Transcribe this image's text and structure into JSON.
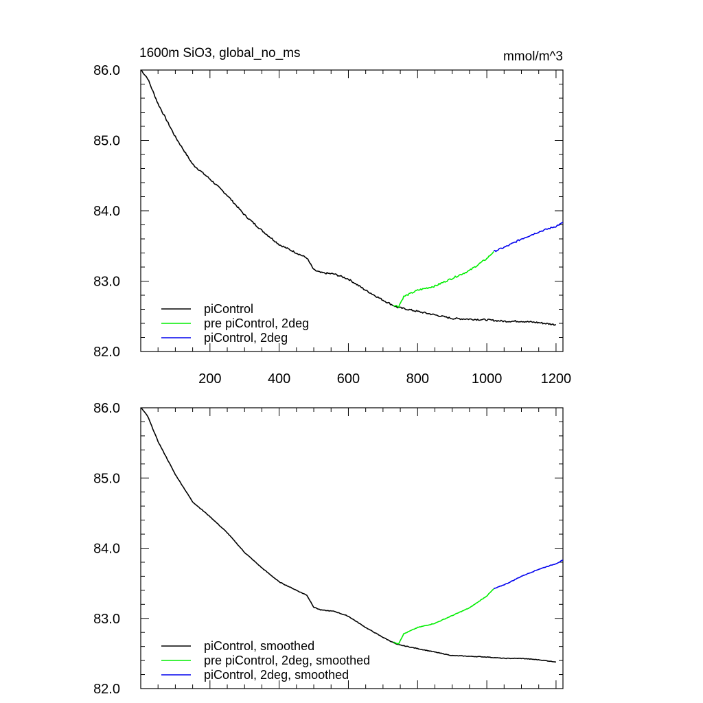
{
  "chart_data": [
    {
      "type": "line",
      "title": "1600m SiO3, global_no_ms",
      "units": "mmol/m^3",
      "xlim": [
        0,
        1220
      ],
      "ylim": [
        82.0,
        86.0
      ],
      "xticks": [
        200,
        400,
        600,
        800,
        1000,
        1200
      ],
      "xtick_labels": [
        "200",
        "400",
        "600",
        "800",
        "1000",
        "1200"
      ],
      "yticks": [
        82.0,
        83.0,
        84.0,
        85.0,
        86.0
      ],
      "ytick_labels": [
        "82.0",
        "83.0",
        "84.0",
        "85.0",
        "86.0"
      ],
      "legend_position": "bottom-left",
      "series": [
        {
          "name": "piControl",
          "color": "#000000",
          "x": [
            1,
            20,
            50,
            100,
            150,
            200,
            250,
            300,
            350,
            400,
            450,
            480,
            500,
            520,
            560,
            600,
            650,
            700,
            740,
            800,
            850,
            900,
            950,
            1000,
            1050,
            1100,
            1150,
            1200
          ],
          "y": [
            86.0,
            85.88,
            85.52,
            85.05,
            84.66,
            84.45,
            84.22,
            83.94,
            83.72,
            83.52,
            83.4,
            83.33,
            83.16,
            83.12,
            83.1,
            83.03,
            82.87,
            82.73,
            82.63,
            82.57,
            82.52,
            82.47,
            82.46,
            82.45,
            82.43,
            82.43,
            82.41,
            82.38
          ]
        },
        {
          "name": "pre piControl, 2deg",
          "color": "#00ee00",
          "x": [
            730,
            745,
            760,
            800,
            850,
            900,
            950,
            1000,
            1020
          ],
          "y": [
            82.66,
            82.64,
            82.78,
            82.87,
            82.93,
            83.04,
            83.15,
            83.32,
            83.42
          ],
          "noise": 0.012
        },
        {
          "name": "piControl, 2deg",
          "color": "#0000ee",
          "x": [
            1020,
            1060,
            1100,
            1150,
            1200,
            1220
          ],
          "y": [
            83.42,
            83.5,
            83.6,
            83.7,
            83.78,
            83.83
          ]
        }
      ]
    },
    {
      "type": "line",
      "title": "",
      "xlim": [
        0,
        1220
      ],
      "ylim": [
        82.0,
        86.0
      ],
      "xticks": [
        200,
        400,
        600,
        800,
        1000,
        1200
      ],
      "xtick_labels": [],
      "yticks": [
        82.0,
        83.0,
        84.0,
        85.0,
        86.0
      ],
      "ytick_labels": [
        "82.0",
        "83.0",
        "84.0",
        "85.0",
        "86.0"
      ],
      "legend_position": "bottom-left",
      "series": [
        {
          "name": "piControl, smoothed",
          "color": "#000000",
          "x": [
            1,
            20,
            50,
            100,
            150,
            200,
            250,
            300,
            350,
            400,
            450,
            480,
            500,
            520,
            560,
            600,
            650,
            700,
            740,
            800,
            850,
            900,
            950,
            1000,
            1050,
            1100,
            1150,
            1200
          ],
          "y": [
            86.0,
            85.88,
            85.52,
            85.05,
            84.66,
            84.45,
            84.22,
            83.94,
            83.72,
            83.52,
            83.4,
            83.33,
            83.16,
            83.12,
            83.1,
            83.03,
            82.87,
            82.73,
            82.63,
            82.57,
            82.52,
            82.47,
            82.46,
            82.45,
            82.43,
            82.43,
            82.41,
            82.38
          ]
        },
        {
          "name": "pre piControl, 2deg, smoothed",
          "color": "#00ee00",
          "x": [
            730,
            745,
            760,
            800,
            850,
            900,
            950,
            1000,
            1020
          ],
          "y": [
            82.66,
            82.64,
            82.78,
            82.87,
            82.93,
            83.04,
            83.15,
            83.32,
            83.42
          ]
        },
        {
          "name": "piControl, 2deg, smoothed",
          "color": "#0000ee",
          "x": [
            1020,
            1060,
            1100,
            1150,
            1200,
            1220
          ],
          "y": [
            83.42,
            83.5,
            83.6,
            83.7,
            83.78,
            83.83
          ]
        }
      ]
    }
  ]
}
